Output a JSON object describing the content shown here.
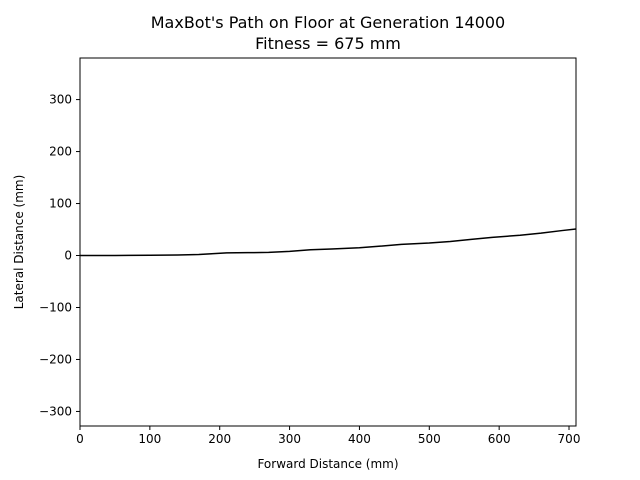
{
  "chart_data": {
    "type": "line",
    "title": "MaxBot's Path on Floor at Generation 14000",
    "subtitle": "Fitness = 675 mm",
    "xlabel": "Forward Distance (mm)",
    "ylabel": "Lateral Distance (mm)",
    "xlim": [
      0,
      710
    ],
    "ylim": [
      -328,
      380
    ],
    "xticks": [
      0,
      100,
      200,
      300,
      400,
      500,
      600,
      700
    ],
    "yticks": [
      -300,
      -200,
      -100,
      0,
      100,
      200,
      300
    ],
    "xtick_labels": [
      "0",
      "100",
      "200",
      "300",
      "400",
      "500",
      "600",
      "700"
    ],
    "ytick_labels": [
      "−300",
      "−200",
      "−100",
      "0",
      "100",
      "200",
      "300"
    ],
    "grid": false,
    "legend": "none",
    "line_color": "#000000",
    "series": [
      {
        "x": [
          0,
          50,
          100,
          140,
          170,
          210,
          240,
          270,
          300,
          330,
          360,
          400,
          430,
          460,
          500,
          530,
          560,
          590,
          630,
          660,
          690,
          710
        ],
        "y": [
          0,
          0,
          0.5,
          1,
          2,
          5,
          5.5,
          6,
          8,
          11,
          12.5,
          15,
          18,
          21.5,
          24,
          27,
          31,
          35,
          39,
          43,
          48,
          51
        ]
      }
    ]
  }
}
